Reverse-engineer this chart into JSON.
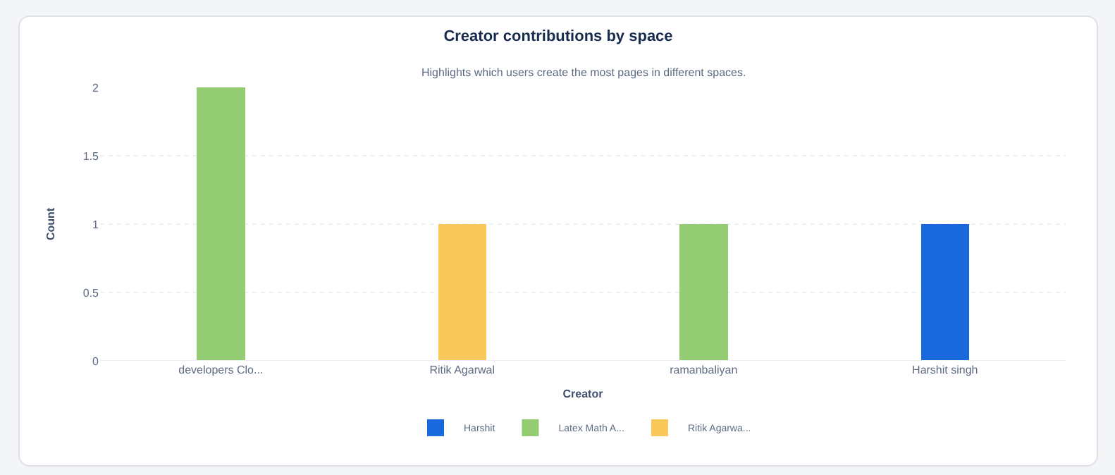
{
  "chart_data": {
    "type": "bar",
    "title": "Creator contributions by space",
    "subtitle": "Highlights which users create the most pages in different spaces.",
    "xlabel": "Creator",
    "ylabel": "Count",
    "categories": [
      "developers Clo...",
      "Ritik Agarwal",
      "ramanbaliyan",
      "Harshit singh"
    ],
    "series": [
      {
        "name": "Harshit",
        "color": "#1a69dc",
        "values": [
          null,
          null,
          null,
          1
        ]
      },
      {
        "name": "Latex Math A...",
        "color": "#93cc72",
        "values": [
          2,
          null,
          1,
          null
        ]
      },
      {
        "name": "Ritik Agarwa...",
        "color": "#f9c85a",
        "values": [
          null,
          1,
          null,
          null
        ]
      }
    ],
    "stacked": true,
    "ylim": [
      0,
      2
    ],
    "yticks": [
      0,
      0.5,
      1,
      1.5,
      2
    ],
    "grid": "y",
    "legend": "bottom"
  }
}
